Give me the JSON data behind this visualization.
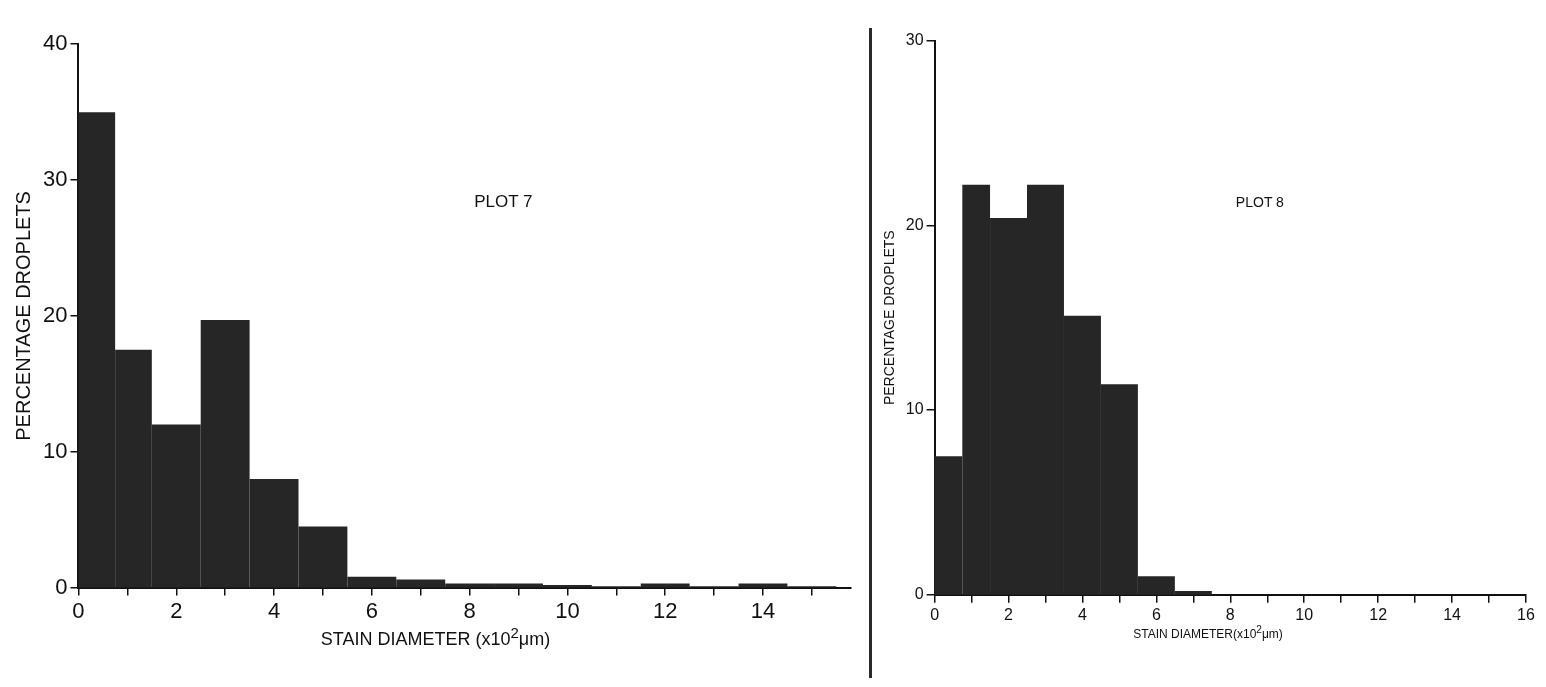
{
  "chart_data": [
    {
      "type": "histogram",
      "annotations": [
        "PLOT 7"
      ],
      "xlabel": "STAIN DIAMETER (x10$^{2}$μm)",
      "ylabel": "PERCENTAGE DROPLETS",
      "color": "#262626",
      "bins": [
        0,
        0.75,
        1.5,
        2.5,
        3.5,
        4.5,
        5.5,
        6.5,
        7.5,
        8.5,
        9.5,
        10.5,
        11.5,
        12.5,
        13.5,
        14.5,
        15.5
      ],
      "values": [
        35,
        17.5,
        12,
        19.7,
        8,
        4.5,
        0.8,
        0.6,
        0.3,
        0.3,
        0.2,
        0.1,
        0.3,
        0.1,
        0.3,
        0.1
      ],
      "xlim": [
        0,
        15.8
      ],
      "xticks": [
        0,
        {
          "value": 1,
          "label": null
        },
        2,
        {
          "value": 3,
          "label": null
        },
        4,
        {
          "value": 5,
          "label": null
        },
        6,
        {
          "value": 7,
          "label": null
        },
        8,
        {
          "value": 9,
          "label": null
        },
        10,
        {
          "value": 11,
          "label": null
        },
        12,
        {
          "value": 13,
          "label": null
        },
        14,
        {
          "value": 15,
          "label": null
        }
      ],
      "ylim": [
        0,
        40
      ],
      "yticks": [
        0,
        10,
        20,
        30,
        40
      ]
    },
    {
      "type": "histogram",
      "annotations": [
        "PLOT 8"
      ],
      "xlabel": "STAIN DIAMETER(x10$^{2}$μm)",
      "ylabel": "PERCENTAGE DROPLETS",
      "color": "#262626",
      "bins": [
        0,
        0.75,
        1.5,
        2.5,
        3.5,
        4.5,
        5.5,
        6.5,
        7.5
      ],
      "values": [
        7.5,
        22.2,
        20.4,
        22.2,
        15.1,
        11.4,
        1,
        0.2
      ],
      "xlim": [
        0,
        16
      ],
      "xticks": [
        0,
        {
          "value": 1,
          "label": null
        },
        2,
        {
          "value": 3,
          "label": null
        },
        4,
        {
          "value": 5,
          "label": null
        },
        6,
        {
          "value": 7,
          "label": null
        },
        8,
        {
          "value": 9,
          "label": null
        },
        10,
        {
          "value": 11,
          "label": null
        },
        12,
        {
          "value": 13,
          "label": null
        },
        14,
        {
          "value": 15,
          "label": null
        },
        16
      ],
      "ylim": [
        0,
        30
      ],
      "yticks": [
        0,
        10,
        20,
        30
      ]
    }
  ]
}
